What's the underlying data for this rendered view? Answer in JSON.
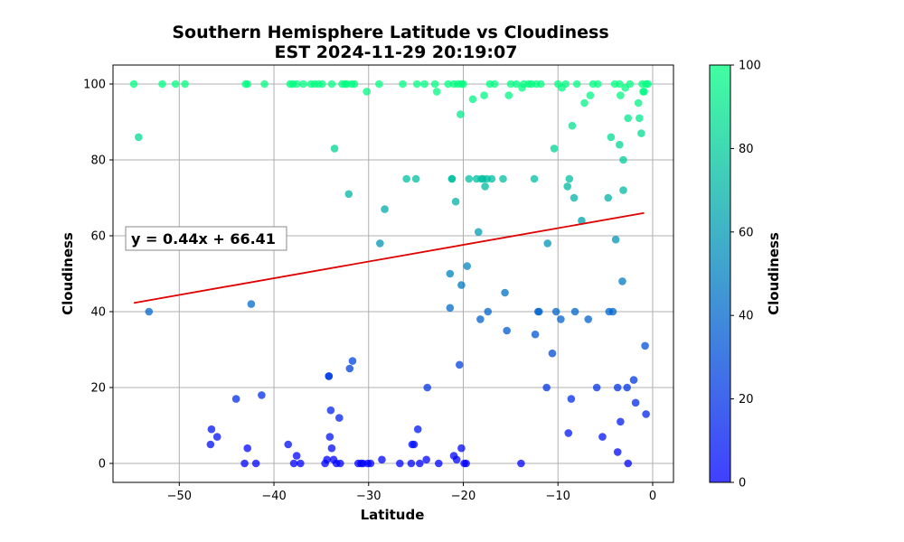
{
  "chart_data": {
    "type": "scatter",
    "title": "Southern Hemisphere Latitude vs Cloudiness",
    "subtitle": "EST 2024-11-29 20:19:07",
    "xlabel": "Latitude",
    "ylabel": "Cloudiness",
    "xlim": [
      -57,
      2.2
    ],
    "ylim": [
      -5,
      105
    ],
    "xticks": [
      -50,
      -40,
      -30,
      -20,
      -10,
      0
    ],
    "yticks": [
      0,
      20,
      40,
      60,
      80,
      100
    ],
    "grid": true,
    "colorbar": {
      "label": "Cloudiness",
      "range": [
        0,
        100
      ],
      "ticks": [
        0,
        20,
        40,
        60,
        80,
        100
      ],
      "colormap_low": "#0000ff",
      "colormap_high": "#00ff80"
    },
    "regression": {
      "equation": "y = 0.44x + 66.41",
      "slope": 0.44,
      "intercept": 66.41,
      "x_range": [
        -54.8,
        -0.9
      ],
      "color": "#e00000"
    },
    "points": [
      [
        -54.8,
        100
      ],
      [
        -54.3,
        86
      ],
      [
        -53.2,
        40
      ],
      [
        -51.8,
        100
      ],
      [
        -50.4,
        100
      ],
      [
        -49.4,
        100
      ],
      [
        -46.6,
        9
      ],
      [
        -46.7,
        5
      ],
      [
        -46.0,
        7
      ],
      [
        -44.0,
        17
      ],
      [
        -43.0,
        100
      ],
      [
        -42.8,
        100
      ],
      [
        -42.8,
        4
      ],
      [
        -43.1,
        0
      ],
      [
        -42.4,
        42
      ],
      [
        -41.9,
        0
      ],
      [
        -41.3,
        18
      ],
      [
        -41.0,
        100
      ],
      [
        -38.5,
        5
      ],
      [
        -38.3,
        100
      ],
      [
        -38.0,
        100
      ],
      [
        -37.6,
        100
      ],
      [
        -37.9,
        0
      ],
      [
        -37.6,
        2
      ],
      [
        -37.2,
        0
      ],
      [
        -36.9,
        100
      ],
      [
        -36.1,
        100
      ],
      [
        -35.7,
        100
      ],
      [
        -35.3,
        100
      ],
      [
        -34.9,
        100
      ],
      [
        -34.6,
        0
      ],
      [
        -34.4,
        1
      ],
      [
        -34.2,
        23
      ],
      [
        -34.2,
        23
      ],
      [
        -34.1,
        7
      ],
      [
        -34.0,
        14
      ],
      [
        -33.9,
        4
      ],
      [
        -33.9,
        100
      ],
      [
        -33.7,
        1
      ],
      [
        -33.6,
        83
      ],
      [
        -33.4,
        0
      ],
      [
        -33.1,
        12
      ],
      [
        -33.0,
        0
      ],
      [
        -32.8,
        100
      ],
      [
        -32.5,
        100
      ],
      [
        -32.3,
        100
      ],
      [
        -32.1,
        71
      ],
      [
        -32.0,
        25
      ],
      [
        -31.8,
        100
      ],
      [
        -31.7,
        27
      ],
      [
        -31.5,
        100
      ],
      [
        -31.1,
        0
      ],
      [
        -30.8,
        0
      ],
      [
        -30.6,
        0
      ],
      [
        -30.2,
        98
      ],
      [
        -30.1,
        0
      ],
      [
        -29.8,
        0
      ],
      [
        -28.9,
        100
      ],
      [
        -28.8,
        58
      ],
      [
        -28.6,
        1
      ],
      [
        -28.3,
        67
      ],
      [
        -26.7,
        0
      ],
      [
        -26.4,
        100
      ],
      [
        -26.0,
        75
      ],
      [
        -25.5,
        0
      ],
      [
        -25.4,
        5
      ],
      [
        -25.2,
        5
      ],
      [
        -25.0,
        75
      ],
      [
        -24.8,
        9
      ],
      [
        -24.9,
        100
      ],
      [
        -24.6,
        0
      ],
      [
        -24.1,
        100
      ],
      [
        -23.9,
        1
      ],
      [
        -23.8,
        20
      ],
      [
        -23.0,
        100
      ],
      [
        -22.8,
        98
      ],
      [
        -22.6,
        0
      ],
      [
        -21.6,
        100
      ],
      [
        -21.4,
        41
      ],
      [
        -21.4,
        50
      ],
      [
        -21.2,
        75
      ],
      [
        -21.2,
        75
      ],
      [
        -21.0,
        2
      ],
      [
        -21.0,
        100
      ],
      [
        -20.8,
        69
      ],
      [
        -20.7,
        1
      ],
      [
        -20.6,
        100
      ],
      [
        -20.4,
        26
      ],
      [
        -20.3,
        92
      ],
      [
        -20.2,
        100
      ],
      [
        -20.2,
        47
      ],
      [
        -20.2,
        4
      ],
      [
        -20.0,
        100
      ],
      [
        -19.9,
        0
      ],
      [
        -19.7,
        0
      ],
      [
        -19.6,
        52
      ],
      [
        -19.4,
        75
      ],
      [
        -19.0,
        96
      ],
      [
        -18.6,
        75
      ],
      [
        -18.4,
        61
      ],
      [
        -18.2,
        38
      ],
      [
        -18.1,
        75
      ],
      [
        -17.9,
        75
      ],
      [
        -17.8,
        97
      ],
      [
        -17.7,
        73
      ],
      [
        -17.5,
        75
      ],
      [
        -17.4,
        40
      ],
      [
        -17.2,
        100
      ],
      [
        -17.0,
        75
      ],
      [
        -16.7,
        100
      ],
      [
        -15.8,
        75
      ],
      [
        -15.6,
        45
      ],
      [
        -15.4,
        35
      ],
      [
        -15.2,
        97
      ],
      [
        -15.0,
        100
      ],
      [
        -14.4,
        100
      ],
      [
        -13.9,
        0
      ],
      [
        -13.8,
        99
      ],
      [
        -13.6,
        100
      ],
      [
        -13.1,
        100
      ],
      [
        -12.8,
        100
      ],
      [
        -12.5,
        75
      ],
      [
        -12.4,
        34
      ],
      [
        -12.3,
        100
      ],
      [
        -12.1,
        40
      ],
      [
        -12.0,
        40
      ],
      [
        -11.8,
        100
      ],
      [
        -11.2,
        20
      ],
      [
        -11.1,
        58
      ],
      [
        -10.6,
        29
      ],
      [
        -10.4,
        83
      ],
      [
        -10.2,
        40
      ],
      [
        -10.0,
        100
      ],
      [
        -9.7,
        38
      ],
      [
        -9.6,
        99
      ],
      [
        -9.2,
        100
      ],
      [
        -9.0,
        73
      ],
      [
        -8.9,
        8
      ],
      [
        -8.8,
        75
      ],
      [
        -8.6,
        17
      ],
      [
        -8.5,
        89
      ],
      [
        -8.3,
        70
      ],
      [
        -8.2,
        40
      ],
      [
        -8.0,
        100
      ],
      [
        -7.5,
        64
      ],
      [
        -7.2,
        95
      ],
      [
        -6.8,
        38
      ],
      [
        -6.6,
        97
      ],
      [
        -6.3,
        100
      ],
      [
        -5.9,
        20
      ],
      [
        -5.8,
        100
      ],
      [
        -5.3,
        7
      ],
      [
        -4.7,
        70
      ],
      [
        -4.6,
        40
      ],
      [
        -4.4,
        86
      ],
      [
        -4.2,
        40
      ],
      [
        -4.0,
        100
      ],
      [
        -3.9,
        59
      ],
      [
        -3.7,
        20
      ],
      [
        -3.7,
        3
      ],
      [
        -3.5,
        84
      ],
      [
        -3.5,
        100
      ],
      [
        -3.4,
        11
      ],
      [
        -3.4,
        97
      ],
      [
        -3.2,
        48
      ],
      [
        -3.1,
        72
      ],
      [
        -3.1,
        80
      ],
      [
        -2.9,
        99
      ],
      [
        -2.7,
        20
      ],
      [
        -2.6,
        91
      ],
      [
        -2.6,
        0
      ],
      [
        -2.4,
        100
      ],
      [
        -2.0,
        22
      ],
      [
        -1.8,
        16
      ],
      [
        -1.5,
        95
      ],
      [
        -1.4,
        91
      ],
      [
        -1.2,
        87
      ],
      [
        -1.1,
        100
      ],
      [
        -1.0,
        98
      ],
      [
        -0.9,
        98
      ],
      [
        -0.8,
        31
      ],
      [
        -0.7,
        100
      ],
      [
        -0.7,
        13
      ],
      [
        -0.5,
        100
      ]
    ]
  }
}
